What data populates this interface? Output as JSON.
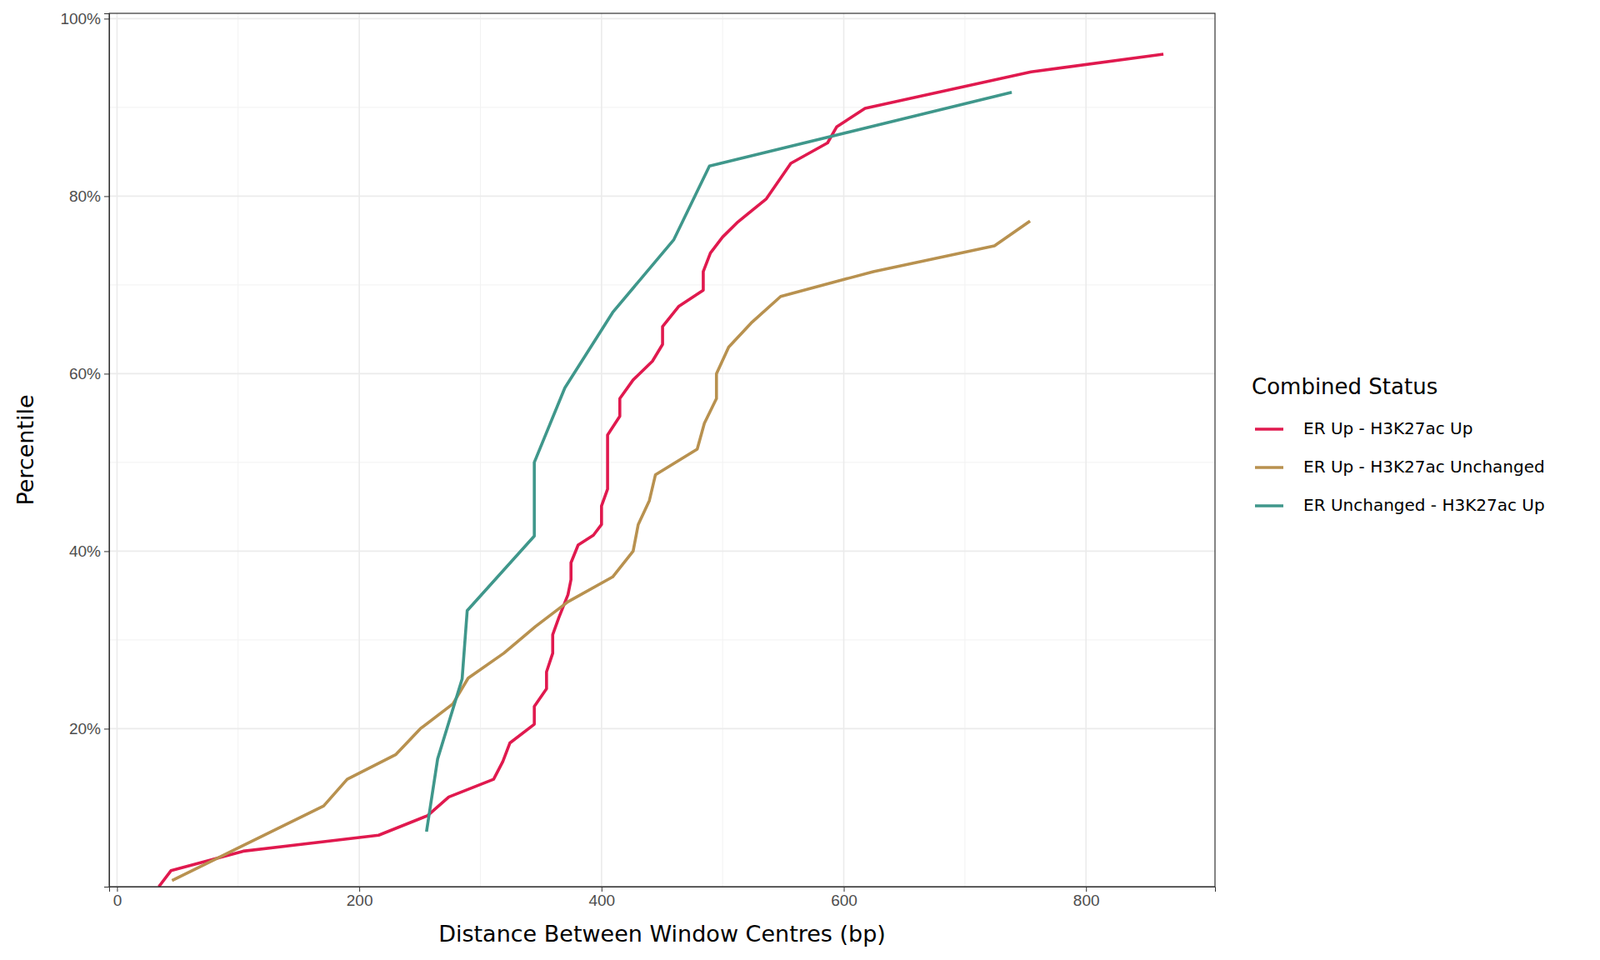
{
  "chart_data": {
    "type": "line",
    "x_label": "Distance Between Window Centres (bp)",
    "y_label": "Percentile",
    "legend_title": "Combined Status",
    "legend": "right",
    "grid": true,
    "xlim": [
      -6.5,
      906.5
    ],
    "xticks": [
      0,
      200,
      400,
      600,
      800
    ],
    "ylim": [
      2.2,
      100.6
    ],
    "yticks": [
      {
        "value": 20,
        "label": "20%"
      },
      {
        "value": 40,
        "label": "40%"
      },
      {
        "value": 60,
        "label": "60%"
      },
      {
        "value": 80,
        "label": "80%"
      },
      {
        "value": 100,
        "label": "100%"
      }
    ],
    "series": [
      {
        "name": "ER Up - H3K27ac Up",
        "color": "#e0194e",
        "x": [
          34.5,
          44.5,
          104.2,
          216.0,
          256.3,
          273.9,
          310.9,
          318.5,
          324.4,
          344.5,
          344.5,
          354.6,
          354.6,
          359.7,
          359.7,
          364.7,
          372.3,
          374.8,
          374.8,
          380.7,
          393.3,
          400.0,
          400.0,
          405.0,
          405.0,
          405.0,
          415.1,
          415.1,
          426.1,
          442.0,
          450.4,
          450.4,
          463.9,
          484.0,
          484.0,
          489.9,
          500.0,
          512.6,
          536.1,
          556.3,
          586.6,
          594.1,
          617.6,
          754.6,
          863.9
        ],
        "values": [
          2.2,
          4.0,
          6.2,
          8.0,
          10.2,
          12.3,
          14.3,
          16.3,
          18.4,
          20.5,
          22.5,
          24.5,
          26.4,
          28.5,
          30.6,
          32.5,
          35.1,
          36.8,
          38.7,
          40.7,
          41.8,
          43.0,
          45.1,
          47.0,
          49.1,
          53.1,
          55.2,
          57.2,
          59.3,
          61.4,
          63.3,
          65.3,
          67.6,
          69.4,
          71.5,
          73.6,
          75.4,
          77.1,
          79.7,
          83.7,
          86.0,
          87.8,
          89.9,
          94.0,
          96.0
        ]
      },
      {
        "name": "ER Up - H3K27ac Unchanged",
        "color": "#b8914f",
        "x": [
          45.4,
          170.6,
          190.0,
          230.3,
          250.4,
          277.3,
          289.9,
          319.3,
          345.4,
          372.3,
          409.2,
          426.1,
          430.3,
          439.5,
          444.5,
          479.0,
          484.9,
          494.9,
          494.9,
          505.0,
          523.5,
          547.9,
          624.4,
          724.4,
          753.8
        ],
        "values": [
          2.9,
          11.3,
          14.3,
          17.1,
          20.0,
          22.8,
          25.7,
          28.5,
          31.5,
          34.3,
          37.1,
          40.0,
          43.0,
          45.7,
          48.6,
          51.5,
          54.4,
          57.2,
          60.0,
          63.0,
          65.7,
          68.7,
          71.5,
          74.4,
          77.2
        ]
      },
      {
        "name": "ER Unchanged - H3K27ac Up",
        "color": "#3f978b",
        "x": [
          255.5,
          264.7,
          284.9,
          289.1,
          344.5,
          344.5,
          369.7,
          409.2,
          459.7,
          489.1,
          738.7
        ],
        "values": [
          8.4,
          16.6,
          25.6,
          33.3,
          41.7,
          50.0,
          58.4,
          66.9,
          75.1,
          83.4,
          91.7
        ]
      }
    ]
  }
}
